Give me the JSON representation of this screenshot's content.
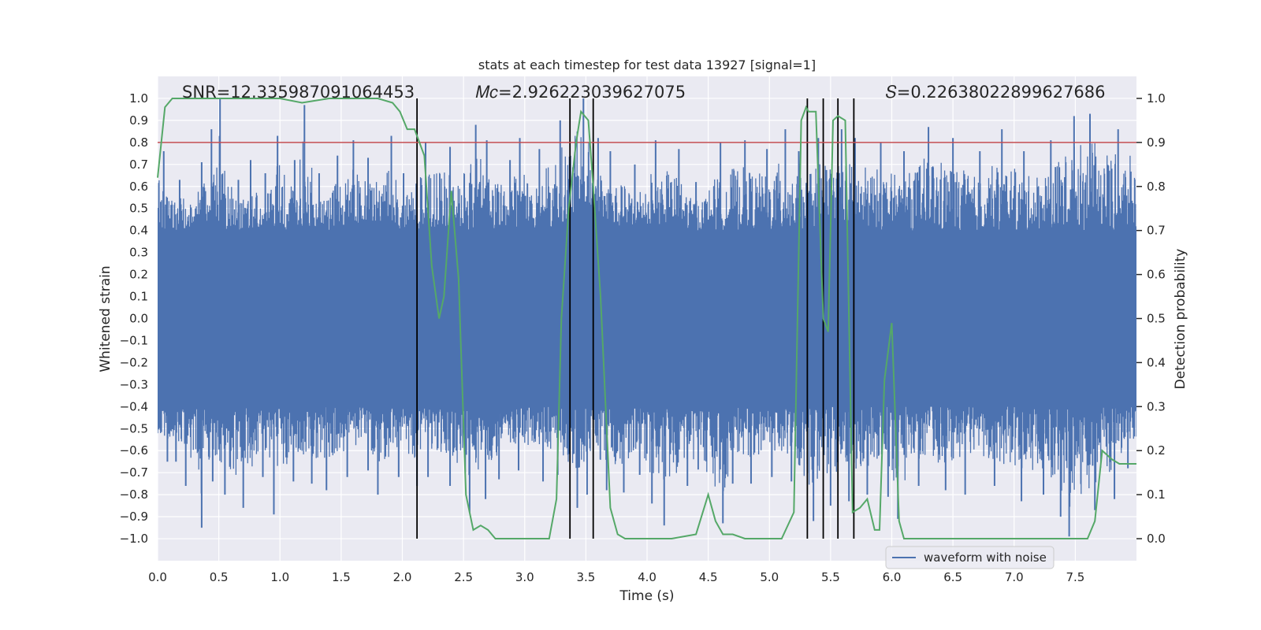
{
  "chart_data": {
    "type": "line",
    "title": "stats at each timestep for test data 13927 [signal=1]",
    "xlabel": "Time (s)",
    "ylabel": "Whitened strain",
    "y2label": "Detection probability",
    "xlim": [
      0.0,
      8.0
    ],
    "ylim": [
      -1.1,
      1.1
    ],
    "y2lim": [
      -0.05,
      1.05
    ],
    "x_ticks": [
      0.0,
      0.5,
      1.0,
      1.5,
      2.0,
      2.5,
      3.0,
      3.5,
      4.0,
      4.5,
      5.0,
      5.5,
      6.0,
      6.5,
      7.0,
      7.5
    ],
    "x_tick_labels": [
      "0.0",
      "0.5",
      "1.0",
      "1.5",
      "2.0",
      "2.5",
      "3.0",
      "3.5",
      "4.0",
      "4.5",
      "5.0",
      "5.5",
      "6.0",
      "6.5",
      "7.0",
      "7.5"
    ],
    "y_ticks": [
      1.0,
      0.9,
      0.8,
      0.7,
      0.6,
      0.5,
      0.4,
      0.3,
      0.2,
      0.1,
      0.0,
      -0.1,
      -0.2,
      -0.3,
      -0.4,
      -0.5,
      -0.6,
      -0.7,
      -0.8,
      -0.9,
      -1.0
    ],
    "y_tick_labels": [
      "1.0",
      "0.9",
      "0.8",
      "0.7",
      "0.6",
      "0.5",
      "0.4",
      "0.3",
      "0.2",
      "0.1",
      "0.0",
      "−0.1",
      "−0.2",
      "−0.3",
      "−0.4",
      "−0.5",
      "−0.6",
      "−0.7",
      "−0.8",
      "−0.9",
      "−1.0"
    ],
    "y2_ticks": [
      1.0,
      0.9,
      0.8,
      0.7,
      0.6,
      0.5,
      0.4,
      0.3,
      0.2,
      0.1,
      0.0
    ],
    "y2_tick_labels": [
      "1.0",
      "0.9",
      "0.8",
      "0.7",
      "0.6",
      "0.5",
      "0.4",
      "0.3",
      "0.2",
      "0.1",
      "0.0"
    ],
    "grid": true,
    "annotations": [
      {
        "name": "snr",
        "text": "SNR=12.335987091064453",
        "x": 0.2
      },
      {
        "name": "chirp-mass",
        "text": "𝑀𝑐=2.926223039627075",
        "x": 2.6
      },
      {
        "name": "spin",
        "text": "𝑆=0.22638022899627686",
        "x": 5.95
      }
    ],
    "threshold": {
      "value": 0.8,
      "color": "#c44e52"
    },
    "vlines": [
      2.12,
      3.37,
      3.56,
      5.31,
      5.44,
      5.56,
      5.69
    ],
    "waveform": {
      "name": "waveform with noise",
      "color": "#4c72b0",
      "band_abs": 0.4,
      "sample_step": 0.004,
      "peaks": [
        [
          0.05,
          0.76
        ],
        [
          0.18,
          0.63
        ],
        [
          0.36,
          0.71
        ],
        [
          0.44,
          0.86
        ],
        [
          0.51,
          1.0
        ],
        [
          0.66,
          0.63
        ],
        [
          0.76,
          0.72
        ],
        [
          0.88,
          0.66
        ],
        [
          0.98,
          0.83
        ],
        [
          1.12,
          0.72
        ],
        [
          1.2,
          0.97
        ],
        [
          1.32,
          0.66
        ],
        [
          1.47,
          0.74
        ],
        [
          1.6,
          0.81
        ],
        [
          1.72,
          0.73
        ],
        [
          1.91,
          0.83
        ],
        [
          2.01,
          0.66
        ],
        [
          2.19,
          0.8
        ],
        [
          2.39,
          0.78
        ],
        [
          2.6,
          0.88
        ],
        [
          2.69,
          0.81
        ],
        [
          2.88,
          0.72
        ],
        [
          2.96,
          0.82
        ],
        [
          3.12,
          0.77
        ],
        [
          3.29,
          0.9
        ],
        [
          3.48,
          1.0
        ],
        [
          3.6,
          0.82
        ],
        [
          3.7,
          0.76
        ],
        [
          3.9,
          0.7
        ],
        [
          4.07,
          0.81
        ],
        [
          4.26,
          0.77
        ],
        [
          4.4,
          0.62
        ],
        [
          4.6,
          0.8
        ],
        [
          4.8,
          0.81
        ],
        [
          4.98,
          0.77
        ],
        [
          5.13,
          0.86
        ],
        [
          5.24,
          0.76
        ],
        [
          5.4,
          0.82
        ],
        [
          5.59,
          0.86
        ],
        [
          5.7,
          0.82
        ],
        [
          5.91,
          0.8
        ],
        [
          6.1,
          0.76
        ],
        [
          6.3,
          0.87
        ],
        [
          6.5,
          0.82
        ],
        [
          6.72,
          0.76
        ],
        [
          6.9,
          0.86
        ],
        [
          7.08,
          0.76
        ],
        [
          7.3,
          0.81
        ],
        [
          7.49,
          0.92
        ],
        [
          7.62,
          0.93
        ],
        [
          7.85,
          0.86
        ]
      ],
      "troughs": [
        [
          0.08,
          -0.65
        ],
        [
          0.15,
          -0.65
        ],
        [
          0.23,
          -0.76
        ],
        [
          0.36,
          -0.95
        ],
        [
          0.45,
          -0.74
        ],
        [
          0.55,
          -0.8
        ],
        [
          0.7,
          -0.86
        ],
        [
          0.86,
          -0.72
        ],
        [
          0.95,
          -0.89
        ],
        [
          1.11,
          -0.74
        ],
        [
          1.26,
          -0.75
        ],
        [
          1.38,
          -0.78
        ],
        [
          1.55,
          -0.72
        ],
        [
          1.72,
          -0.69
        ],
        [
          1.8,
          -0.8
        ],
        [
          1.97,
          -0.72
        ],
        [
          2.12,
          -0.76
        ],
        [
          2.21,
          -0.72
        ],
        [
          2.39,
          -0.76
        ],
        [
          2.55,
          -0.88
        ],
        [
          2.68,
          -0.82
        ],
        [
          2.79,
          -0.73
        ],
        [
          2.95,
          -0.69
        ],
        [
          3.15,
          -0.74
        ],
        [
          3.27,
          -0.71
        ],
        [
          3.43,
          -0.86
        ],
        [
          3.51,
          -0.8
        ],
        [
          3.67,
          -0.78
        ],
        [
          3.81,
          -0.79
        ],
        [
          3.94,
          -0.71
        ],
        [
          4.04,
          -0.84
        ],
        [
          4.14,
          -0.94
        ],
        [
          4.33,
          -0.76
        ],
        [
          4.62,
          -0.93
        ],
        [
          4.7,
          -0.75
        ],
        [
          4.85,
          -0.75
        ],
        [
          5.02,
          -0.72
        ],
        [
          5.18,
          -0.74
        ],
        [
          5.36,
          -0.92
        ],
        [
          5.5,
          -0.85
        ],
        [
          5.65,
          -0.83
        ],
        [
          5.8,
          -0.8
        ],
        [
          5.97,
          -0.81
        ],
        [
          6.05,
          -0.91
        ],
        [
          6.22,
          -0.76
        ],
        [
          6.44,
          -0.78
        ],
        [
          6.6,
          -0.8
        ],
        [
          6.84,
          -0.76
        ],
        [
          7.06,
          -0.83
        ],
        [
          7.24,
          -0.8
        ],
        [
          7.38,
          -0.9
        ],
        [
          7.45,
          -0.99
        ],
        [
          7.66,
          -0.87
        ],
        [
          7.82,
          -0.82
        ],
        [
          7.93,
          -0.68
        ]
      ]
    },
    "detection_probability": {
      "name": "detection probability",
      "color": "#55a868",
      "x": [
        0.0,
        0.06,
        0.12,
        0.2,
        0.4,
        0.6,
        0.8,
        1.0,
        1.18,
        1.4,
        1.6,
        1.8,
        1.92,
        1.98,
        2.04,
        2.1,
        2.18,
        2.24,
        2.3,
        2.34,
        2.4,
        2.46,
        2.52,
        2.58,
        2.64,
        2.7,
        2.76,
        2.82,
        2.9,
        3.0,
        3.1,
        3.2,
        3.26,
        3.3,
        3.36,
        3.42,
        3.46,
        3.52,
        3.56,
        3.62,
        3.7,
        3.76,
        3.82,
        3.9,
        4.0,
        4.2,
        4.4,
        4.5,
        4.56,
        4.62,
        4.7,
        4.8,
        4.9,
        5.0,
        5.1,
        5.2,
        5.26,
        5.3,
        5.32,
        5.38,
        5.44,
        5.48,
        5.52,
        5.56,
        5.62,
        5.68,
        5.74,
        5.8,
        5.86,
        5.9,
        5.94,
        6.0,
        6.06,
        6.1,
        6.14,
        6.18,
        6.24,
        6.28,
        6.32,
        6.4,
        6.6,
        6.8,
        7.0,
        7.2,
        7.4,
        7.55,
        7.6,
        7.66,
        7.72,
        7.76,
        7.8,
        7.86,
        7.92,
        8.0
      ],
      "y": [
        0.82,
        0.98,
        1.0,
        1.0,
        1.0,
        1.0,
        1.0,
        1.0,
        0.99,
        1.0,
        1.0,
        1.0,
        0.99,
        0.97,
        0.93,
        0.93,
        0.87,
        0.62,
        0.5,
        0.55,
        0.79,
        0.59,
        0.1,
        0.02,
        0.03,
        0.02,
        0.0,
        0.0,
        0.0,
        0.0,
        0.0,
        0.0,
        0.09,
        0.5,
        0.75,
        0.9,
        0.97,
        0.95,
        0.8,
        0.55,
        0.07,
        0.01,
        0.0,
        0.0,
        0.0,
        0.0,
        0.01,
        0.1,
        0.04,
        0.01,
        0.01,
        0.0,
        0.0,
        0.0,
        0.0,
        0.06,
        0.95,
        0.98,
        0.97,
        0.97,
        0.5,
        0.47,
        0.95,
        0.96,
        0.95,
        0.06,
        0.07,
        0.09,
        0.02,
        0.02,
        0.36,
        0.49,
        0.04,
        0.0,
        0.0,
        0.0,
        0.0,
        0.0,
        0.0,
        0.0,
        0.0,
        0.0,
        0.0,
        0.0,
        0.0,
        0.0,
        0.0,
        0.04,
        0.2,
        0.19,
        0.18,
        0.17,
        0.17,
        0.17
      ]
    },
    "legend": {
      "entries": [
        "waveform with noise"
      ],
      "position": "lower center-right"
    }
  }
}
